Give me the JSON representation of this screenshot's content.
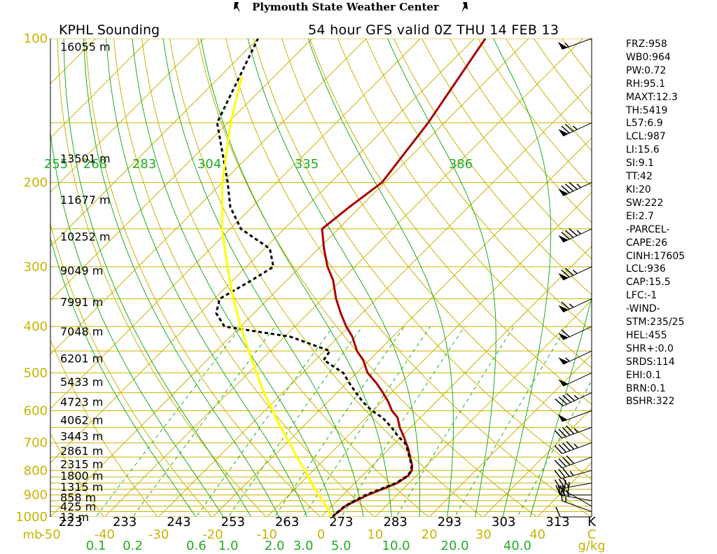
{
  "header": {
    "title": "Plymouth State Weather Center",
    "station_label": "KPHL Sounding",
    "valid_label": "54 hour  GFS valid 0Z THU 14 FEB 13"
  },
  "colors": {
    "isobar": "#c8b400",
    "isotherm": "#c8b400",
    "dry_adiabat": "#c8b400",
    "moist_adiabat": "#22aa22",
    "mixing_ratio": "#22aa22",
    "temperature": "#aa0000",
    "dewpoint": "#000000",
    "parcel": "#ffff00"
  },
  "indices": [
    "FRZ:958",
    "WB0:964",
    "PW:0.72",
    "RH:95.1",
    "MAXT:12.3",
    "TH:5419",
    "L57:6.9",
    "LCL:987",
    "LI:15.6",
    "SI:9.1",
    "TT:42",
    "KI:20",
    "SW:222",
    "EI:2.7",
    "-PARCEL-",
    "CAPE:26",
    "CINH:17605",
    "LCL:936",
    "CAP:15.5",
    "LFC:-1",
    "-WIND-",
    "STM:235/25",
    "HEL:455",
    "SHR+:0.0",
    "SRDS:114",
    "EHI:0.1",
    "BRN:0.1",
    "BSHR:322"
  ],
  "chart_data": {
    "type": "line",
    "title": "KPHL Sounding",
    "subtitle": "54 hour  GFS valid 0Z THU 14 FEB 13",
    "ylabel": "mb",
    "ylim": [
      1000,
      100
    ],
    "y_scale": "log",
    "xlim": [
      -50,
      50
    ],
    "pressure_ticks": [
      {
        "p": 100,
        "label": "100"
      },
      {
        "p": 200,
        "label": "200"
      },
      {
        "p": 300,
        "label": "300"
      },
      {
        "p": 400,
        "label": "400"
      },
      {
        "p": 500,
        "label": "500"
      },
      {
        "p": 600,
        "label": "600"
      },
      {
        "p": 700,
        "label": "700"
      },
      {
        "p": 800,
        "label": "800"
      },
      {
        "p": 900,
        "label": "900"
      },
      {
        "p": 1000,
        "label": "1000"
      }
    ],
    "x_unit_label": "mb",
    "temperature_ticks": [
      {
        "t": -50,
        "label": "-50"
      },
      {
        "t": -40,
        "label": "-40"
      },
      {
        "t": -30,
        "label": "-30"
      },
      {
        "t": -20,
        "label": "-20"
      },
      {
        "t": -10,
        "label": "-10"
      },
      {
        "t": 0,
        "label": "0"
      },
      {
        "t": 10,
        "label": "10"
      },
      {
        "t": 20,
        "label": "20"
      },
      {
        "t": 30,
        "label": "30"
      },
      {
        "t": 40,
        "label": "40"
      },
      {
        "t": 50,
        "label": "C"
      }
    ],
    "mixing_ratio_labels": [
      {
        "w": 0.1,
        "label": "0.1"
      },
      {
        "w": 0.2,
        "label": "0.2"
      },
      {
        "w": 0.6,
        "label": "0.6"
      },
      {
        "w": 1.0,
        "label": "1.0"
      },
      {
        "w": 2.0,
        "label": "2.0"
      },
      {
        "w": 3.0,
        "label": "3.0"
      },
      {
        "w": 5.0,
        "label": "5.0"
      },
      {
        "w": 10.0,
        "label": "10.0"
      },
      {
        "w": 20.0,
        "label": "20.0"
      },
      {
        "w": 40.0,
        "label": "40.0"
      }
    ],
    "mixing_ratio_unit": "g/kg",
    "theta_bottom_labels": [
      {
        "theta": 223,
        "label": "223"
      },
      {
        "theta": 233,
        "label": "233"
      },
      {
        "theta": 243,
        "label": "243"
      },
      {
        "theta": 253,
        "label": "253"
      },
      {
        "theta": 263,
        "label": "263"
      },
      {
        "theta": 273,
        "label": "273"
      },
      {
        "theta": 283,
        "label": "283"
      },
      {
        "theta": 293,
        "label": "293"
      },
      {
        "theta": 303,
        "label": "303"
      },
      {
        "theta": 313,
        "label": "313"
      }
    ],
    "theta_unit": "K",
    "thetae_labels": [
      {
        "theta": 255,
        "label": "255"
      },
      {
        "theta": 268,
        "label": "268"
      },
      {
        "theta": 283,
        "label": "283"
      },
      {
        "theta": 304,
        "label": "304"
      },
      {
        "theta": 335,
        "label": "335"
      },
      {
        "theta": 386,
        "label": "386"
      }
    ],
    "heights": [
      {
        "p": 1000,
        "label": "13 m"
      },
      {
        "p": 950,
        "label": "425 m"
      },
      {
        "p": 910,
        "label": "858 m"
      },
      {
        "p": 865,
        "label": "1315 m"
      },
      {
        "p": 820,
        "label": "1800 m"
      },
      {
        "p": 775,
        "label": "2315 m"
      },
      {
        "p": 727,
        "label": "2861 m"
      },
      {
        "p": 678,
        "label": "3443 m"
      },
      {
        "p": 627,
        "label": "4062 m"
      },
      {
        "p": 574,
        "label": "4723 m"
      },
      {
        "p": 522,
        "label": "5433 m"
      },
      {
        "p": 466,
        "label": "6201 m"
      },
      {
        "p": 409,
        "label": "7048 m"
      },
      {
        "p": 355,
        "label": "7991 m"
      },
      {
        "p": 305,
        "label": "9049 m"
      },
      {
        "p": 259,
        "label": "10252 m"
      },
      {
        "p": 217,
        "label": "11677 m"
      },
      {
        "p": 178,
        "label": "13501 m"
      },
      {
        "p": 104,
        "label": "16055 m"
      }
    ],
    "series": [
      {
        "name": "Temperature",
        "p": [
          1000,
          975,
          950,
          925,
          900,
          870,
          850,
          820,
          800,
          780,
          750,
          720,
          700,
          680,
          650,
          620,
          600,
          575,
          550,
          525,
          500,
          470,
          450,
          420,
          400,
          375,
          350,
          320,
          300,
          275,
          250,
          225,
          200,
          150,
          100
        ],
        "t": [
          2.0,
          2.3,
          2.5,
          3.5,
          4.6,
          6.5,
          7.8,
          8.5,
          8.2,
          7.3,
          5.4,
          3.5,
          2.0,
          0.5,
          -2.0,
          -4.2,
          -6.5,
          -8.8,
          -11.5,
          -14.5,
          -18.0,
          -21.2,
          -24.0,
          -27.5,
          -30.5,
          -34.0,
          -37.5,
          -41.5,
          -45.0,
          -49.0,
          -53.0,
          -52.0,
          -50.5,
          -53.0,
          -58.0
        ]
      },
      {
        "name": "Dewpoint",
        "p": [
          1000,
          975,
          950,
          925,
          900,
          870,
          850,
          820,
          800,
          780,
          750,
          720,
          700,
          680,
          650,
          620,
          600,
          575,
          550,
          525,
          500,
          470,
          450,
          420,
          400,
          375,
          350,
          320,
          300,
          275,
          250,
          225,
          200,
          150,
          100
        ],
        "t": [
          2.0,
          2.2,
          2.4,
          3.2,
          4.2,
          6.2,
          7.6,
          8.4,
          8.1,
          7.2,
          5.3,
          3.3,
          1.8,
          -0.5,
          -3.5,
          -7.0,
          -10.2,
          -13.5,
          -16.5,
          -19.5,
          -22.5,
          -28.5,
          -29.0,
          -39.0,
          -53.0,
          -57.0,
          -59.0,
          -56.5,
          -55.0,
          -59.0,
          -68.0,
          -74.0,
          -79.0,
          -92.0,
          -100.0
        ]
      },
      {
        "name": "Parcel",
        "p": [
          1000,
          950,
          900,
          850,
          800,
          750,
          700,
          650,
          600,
          550,
          500,
          450,
          400,
          350,
          300,
          250,
          200,
          150,
          120
        ],
        "t": [
          2.0,
          -1.0,
          -4.5,
          -8.0,
          -11.5,
          -15.5,
          -19.5,
          -24.0,
          -28.5,
          -33.5,
          -38.5,
          -44.0,
          -50.0,
          -56.5,
          -63.5,
          -71.5,
          -80.0,
          -89.5,
          -96.0
        ]
      }
    ],
    "wind_barbs": [
      {
        "p": 1000,
        "dir": 270,
        "kt": 10
      },
      {
        "p": 975,
        "dir": 290,
        "kt": 15
      },
      {
        "p": 950,
        "dir": 300,
        "kt": 20
      },
      {
        "p": 925,
        "dir": 280,
        "kt": 25
      },
      {
        "p": 900,
        "dir": 270,
        "kt": 25
      },
      {
        "p": 850,
        "dir": 260,
        "kt": 30
      },
      {
        "p": 800,
        "dir": 255,
        "kt": 35
      },
      {
        "p": 750,
        "dir": 250,
        "kt": 40
      },
      {
        "p": 700,
        "dir": 250,
        "kt": 45
      },
      {
        "p": 650,
        "dir": 250,
        "kt": 45
      },
      {
        "p": 600,
        "dir": 250,
        "kt": 50
      },
      {
        "p": 550,
        "dir": 245,
        "kt": 45
      },
      {
        "p": 500,
        "dir": 245,
        "kt": 50
      },
      {
        "p": 450,
        "dir": 245,
        "kt": 55
      },
      {
        "p": 400,
        "dir": 245,
        "kt": 60
      },
      {
        "p": 350,
        "dir": 245,
        "kt": 65
      },
      {
        "p": 300,
        "dir": 245,
        "kt": 75
      },
      {
        "p": 250,
        "dir": 245,
        "kt": 85
      },
      {
        "p": 200,
        "dir": 245,
        "kt": 85
      },
      {
        "p": 150,
        "dir": 245,
        "kt": 75
      },
      {
        "p": 100,
        "dir": 250,
        "kt": 55
      }
    ],
    "grid": true
  }
}
